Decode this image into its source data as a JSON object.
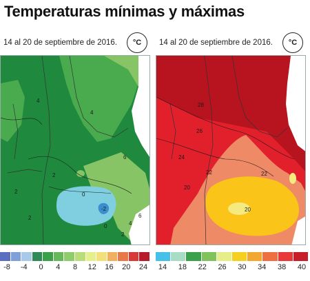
{
  "title": "Temperaturas mínimas y máximas",
  "panels": [
    {
      "subtitle": "14 al 20 de septiembre de 2016.",
      "unit": "°C",
      "isotherm_labels": [
        "4",
        "4",
        "6",
        "2",
        "2",
        "2",
        "0",
        "-2",
        "0",
        "2",
        "4",
        "6"
      ]
    },
    {
      "subtitle": "14 al 20 de septiembre de 2016.",
      "unit": "°C",
      "isotherm_labels": [
        "28",
        "26",
        "24",
        "22",
        "22",
        "20",
        "20"
      ]
    }
  ],
  "legend_min": {
    "ticks": [
      "-8",
      "-4",
      "0",
      "4",
      "8",
      "12",
      "16",
      "20",
      "24"
    ],
    "colors": [
      "#5a6fc0",
      "#7fa0d8",
      "#a9c9e8",
      "#2e8b57",
      "#3aa04a",
      "#66b85a",
      "#8fcc6a",
      "#b8dd7a",
      "#e6f08a",
      "#f3e07a",
      "#f0b060",
      "#e87848",
      "#d83a3a",
      "#b81c2a"
    ]
  },
  "legend_max": {
    "ticks": [
      "14",
      "18",
      "22",
      "26",
      "30",
      "34",
      "38",
      "40"
    ],
    "colors": [
      "#45c0e6",
      "#a8dcc4",
      "#3aa04a",
      "#7fc35a",
      "#e6ee8a",
      "#f5d020",
      "#f2a830",
      "#ee7040",
      "#e83838",
      "#c81e2a"
    ]
  },
  "colors": {
    "min_green_dark": "#1f8a3e",
    "min_green_mid": "#4aaa4e",
    "min_green_light": "#86c466",
    "min_cold": "#7fcfe0",
    "min_coldest": "#3b8fd0",
    "max_darkred": "#b8141f",
    "max_red": "#e2202c",
    "max_salmon": "#ee8a66",
    "max_yellow": "#fbc418",
    "max_paleyellow": "#f4ea80"
  }
}
